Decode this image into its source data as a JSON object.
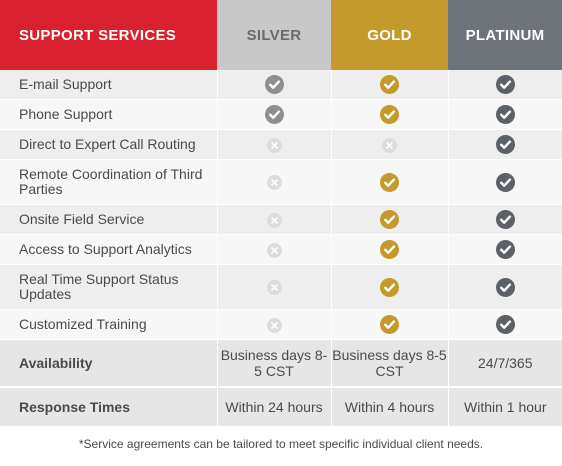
{
  "header": {
    "services": "SUPPORT SERVICES",
    "silver": "SILVER",
    "gold": "GOLD",
    "platinum": "PLATINUM"
  },
  "colors": {
    "services_header": "#d8202e",
    "silver_header": "#c8c8c8",
    "gold_header": "#c49a2c",
    "platinum_header": "#6e737a"
  },
  "features": [
    {
      "label": "E-mail Support",
      "silver": "check",
      "gold": "check",
      "platinum": "check"
    },
    {
      "label": "Phone Support",
      "silver": "check",
      "gold": "check",
      "platinum": "check"
    },
    {
      "label": "Direct to Expert Call Routing",
      "silver": "x",
      "gold": "x",
      "platinum": "check"
    },
    {
      "label": "Remote Coordination of Third Parties",
      "silver": "x",
      "gold": "check",
      "platinum": "check"
    },
    {
      "label": "Onsite Field Service",
      "silver": "x",
      "gold": "check",
      "platinum": "check"
    },
    {
      "label": "Access to Support Analytics",
      "silver": "x",
      "gold": "check",
      "platinum": "check"
    },
    {
      "label": "Real Time Support Status Updates",
      "silver": "x",
      "gold": "check",
      "platinum": "check"
    },
    {
      "label": "Customized Training",
      "silver": "x",
      "gold": "check",
      "platinum": "check"
    }
  ],
  "availability": {
    "label": "Availability",
    "silver": "Business days 8-5 CST",
    "gold": "Business days 8-5 CST",
    "platinum": "24/7/365"
  },
  "response_times": {
    "label": "Response Times",
    "silver": "Within 24 hours",
    "gold": "Within 4 hours",
    "platinum": "Within 1 hour"
  },
  "footnote": "*Service agreements can be tailored to meet specific individual client needs."
}
